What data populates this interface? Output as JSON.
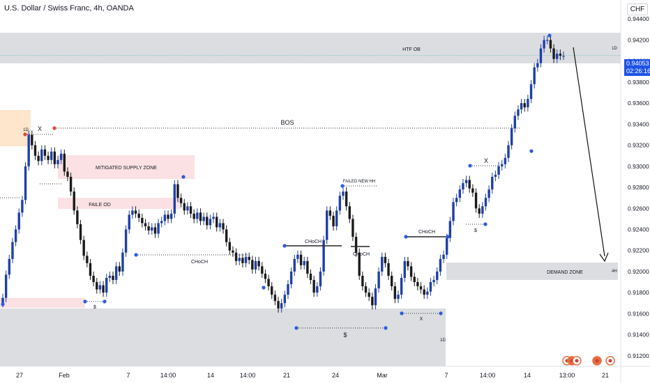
{
  "header": {
    "symbol_title": "U.S. Dollar / Swiss Franc, 4h, OANDA"
  },
  "currency_label": "CHF",
  "last_price": {
    "value": "0.94053",
    "countdown": "02:26:16"
  },
  "colors": {
    "up_candle": "#1e3fa8",
    "down_candle": "#1b1b1b",
    "zone_gray": "#dcdde1",
    "supply_pink": "#fbe1e3",
    "orange_zone": "#fde6cc",
    "price_blue": "#1e53e5",
    "marker_blue": "#2e5bd9",
    "marker_red": "#e0463c"
  },
  "chart_data": {
    "type": "candlestick",
    "y_axis": {
      "ticks": [
        "0.94400",
        "0.94200",
        "0.94000",
        "0.93800",
        "0.93600",
        "0.93400",
        "0.93200",
        "0.93000",
        "0.92800",
        "0.92600",
        "0.92400",
        "0.92200",
        "0.92000",
        "0.91800",
        "0.91600",
        "0.91400",
        "0.91200"
      ],
      "ylim": [
        0.911,
        0.9458
      ]
    },
    "x_axis": {
      "ticks": [
        "27",
        "Feb",
        "7",
        "14:00",
        "14",
        "14:00",
        "21",
        "24",
        "Mar",
        "7",
        "14:00",
        "14",
        "13:00",
        "21"
      ]
    },
    "closes": [
      0.9175,
      0.9197,
      0.9212,
      0.9228,
      0.924,
      0.9256,
      0.9268,
      0.93,
      0.933,
      0.932,
      0.931,
      0.9305,
      0.9316,
      0.931,
      0.9306,
      0.9314,
      0.9302,
      0.9306,
      0.9312,
      0.9295,
      0.929,
      0.9276,
      0.9258,
      0.9245,
      0.923,
      0.9215,
      0.9208,
      0.9196,
      0.919,
      0.9183,
      0.9187,
      0.918,
      0.9194,
      0.9196,
      0.9192,
      0.9205,
      0.92,
      0.9218,
      0.924,
      0.9254,
      0.9258,
      0.9255,
      0.9251,
      0.9246,
      0.9243,
      0.9239,
      0.9242,
      0.9236,
      0.9246,
      0.9248,
      0.9254,
      0.925,
      0.9255,
      0.9283,
      0.927,
      0.9265,
      0.9258,
      0.9262,
      0.9255,
      0.925,
      0.9256,
      0.9248,
      0.9252,
      0.9244,
      0.925,
      0.9252,
      0.9242,
      0.9246,
      0.924,
      0.9228,
      0.922,
      0.9218,
      0.921,
      0.9213,
      0.9208,
      0.9214,
      0.9211,
      0.9202,
      0.921,
      0.9205,
      0.9198,
      0.9193,
      0.9186,
      0.9178,
      0.9172,
      0.9165,
      0.917,
      0.9178,
      0.9188,
      0.92,
      0.9212,
      0.9216,
      0.9206,
      0.921,
      0.9198,
      0.9192,
      0.918,
      0.9186,
      0.92,
      0.923,
      0.9258,
      0.9253,
      0.9243,
      0.9258,
      0.9272,
      0.9276,
      0.9262,
      0.925,
      0.9233,
      0.9218,
      0.9196,
      0.9186,
      0.918,
      0.9176,
      0.9168,
      0.9184,
      0.92,
      0.9214,
      0.9208,
      0.9196,
      0.9186,
      0.9174,
      0.9178,
      0.9194,
      0.921,
      0.9205,
      0.9195,
      0.919,
      0.9186,
      0.9183,
      0.9178,
      0.9181,
      0.919,
      0.9192,
      0.92,
      0.9212,
      0.9216,
      0.9232,
      0.9248,
      0.9266,
      0.927,
      0.9278,
      0.9284,
      0.9287,
      0.9279,
      0.9275,
      0.926,
      0.9255,
      0.9262,
      0.927,
      0.9278,
      0.929,
      0.9292,
      0.93,
      0.9302,
      0.9308,
      0.932,
      0.9336,
      0.9348,
      0.9354,
      0.936,
      0.9356,
      0.9364,
      0.9378,
      0.9394,
      0.9398,
      0.9412,
      0.942,
      0.942,
      0.9412,
      0.9402,
      0.9407,
      0.9405,
      0.9405
    ],
    "annotations": {
      "zones": [
        "HTF OB",
        "1D",
        "MITIGATED SUPPLY ZONE",
        "FAILE OD",
        "DEMAND ZONE",
        "4H",
        "1D"
      ],
      "labels": [
        "BOS",
        "X",
        "1D",
        "CHoCH",
        "CHoCH",
        "CHoCH",
        "CHoCH",
        "FAILED NEW HH",
        "X",
        "$",
        "$",
        "$",
        "X",
        "X",
        "$"
      ]
    }
  }
}
